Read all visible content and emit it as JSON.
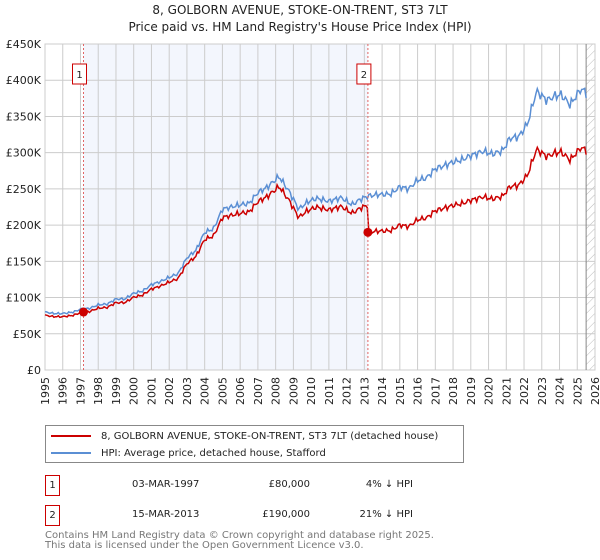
{
  "chart_data": {
    "type": "line",
    "title": "8, GOLBORN AVENUE, STOKE-ON-TRENT, ST3 7LT",
    "subtitle": "Price paid vs. HM Land Registry's House Price Index (HPI)",
    "xlim": [
      1995,
      2026
    ],
    "ylim": [
      0,
      450000
    ],
    "yticks": [
      0,
      50000,
      100000,
      150000,
      200000,
      250000,
      300000,
      350000,
      400000,
      450000
    ],
    "ytick_labels": [
      "£0",
      "£50K",
      "£100K",
      "£150K",
      "£200K",
      "£250K",
      "£300K",
      "£350K",
      "£400K",
      "£450K"
    ],
    "xticks": [
      "1995",
      "1996",
      "1997",
      "1998",
      "1999",
      "2000",
      "2001",
      "2002",
      "2003",
      "2004",
      "2005",
      "2006",
      "2007",
      "2008",
      "2009",
      "2010",
      "2011",
      "2012",
      "2013",
      "2014",
      "2015",
      "2016",
      "2017",
      "2018",
      "2019",
      "2020",
      "2021",
      "2022",
      "2023",
      "2024",
      "2025",
      "2026"
    ],
    "grid": true,
    "shaded_range": [
      1997.17,
      2013.2
    ],
    "data_end": 2025.5,
    "series": [
      {
        "name": "8, GOLBORN AVENUE, STOKE-ON-TRENT, ST3 7LT (detached house)",
        "color": "#cc0000"
      },
      {
        "name": "HPI: Average price, detached house, Stafford",
        "color": "#5b8fd4",
        "x": [
          1995,
          1995.5,
          1996,
          1996.6,
          1997,
          1997.5,
          1998,
          1998.5,
          1999,
          1999.5,
          2000,
          2000.5,
          2001,
          2001.5,
          2002,
          2002.5,
          2003,
          2003.5,
          2004,
          2004.5,
          2005,
          2005.5,
          2006,
          2006.5,
          2007,
          2007.5,
          2008.2,
          2008.8,
          2009.3,
          2009.8,
          2010.3,
          2011,
          2011.7,
          2012.3,
          2012.8,
          2013.2,
          2013.7,
          2014.5,
          2015,
          2015.5,
          2016,
          2016.5,
          2017,
          2017.5,
          2018,
          2018.5,
          2019,
          2019.7,
          2020.2,
          2020.8,
          2021.2,
          2021.7,
          2022.2,
          2022.7,
          2023.3,
          2023.7,
          2024.1,
          2024.6,
          2025.2,
          2025.5
        ],
        "y": [
          80000,
          78000,
          78000,
          80000,
          84000,
          85000,
          90000,
          91000,
          98000,
          98000,
          106000,
          109000,
          118000,
          122000,
          128000,
          133000,
          155000,
          165000,
          190000,
          195000,
          222000,
          225000,
          228000,
          230000,
          245000,
          252000,
          267000,
          245000,
          222000,
          232000,
          237000,
          233000,
          238000,
          228000,
          236000,
          240000,
          242000,
          243000,
          253000,
          250000,
          262000,
          265000,
          278000,
          282000,
          287000,
          290000,
          296000,
          302000,
          298000,
          303000,
          320000,
          322000,
          340000,
          385000,
          372000,
          378000,
          380000,
          366000,
          388000,
          383000
        ]
      }
    ],
    "sales": [
      {
        "label": "1",
        "x": 1997.17,
        "price": 80000
      },
      {
        "label": "2",
        "x": 2013.2,
        "price": 190000
      }
    ]
  },
  "legend": {
    "property": "8, GOLBORN AVENUE, STOKE-ON-TRENT, ST3 7LT (detached house)",
    "hpi": "HPI: Average price, detached house, Stafford"
  },
  "sales_table": [
    {
      "num": "1",
      "date": "03-MAR-1997",
      "price": "£80,000",
      "hpi": "4% ↓ HPI"
    },
    {
      "num": "2",
      "date": "15-MAR-2013",
      "price": "£190,000",
      "hpi": "21% ↓ HPI"
    }
  ],
  "footer": {
    "line1": "Contains HM Land Registry data © Crown copyright and database right 2025.",
    "line2": "This data is licensed under the Open Government Licence v3.0."
  }
}
